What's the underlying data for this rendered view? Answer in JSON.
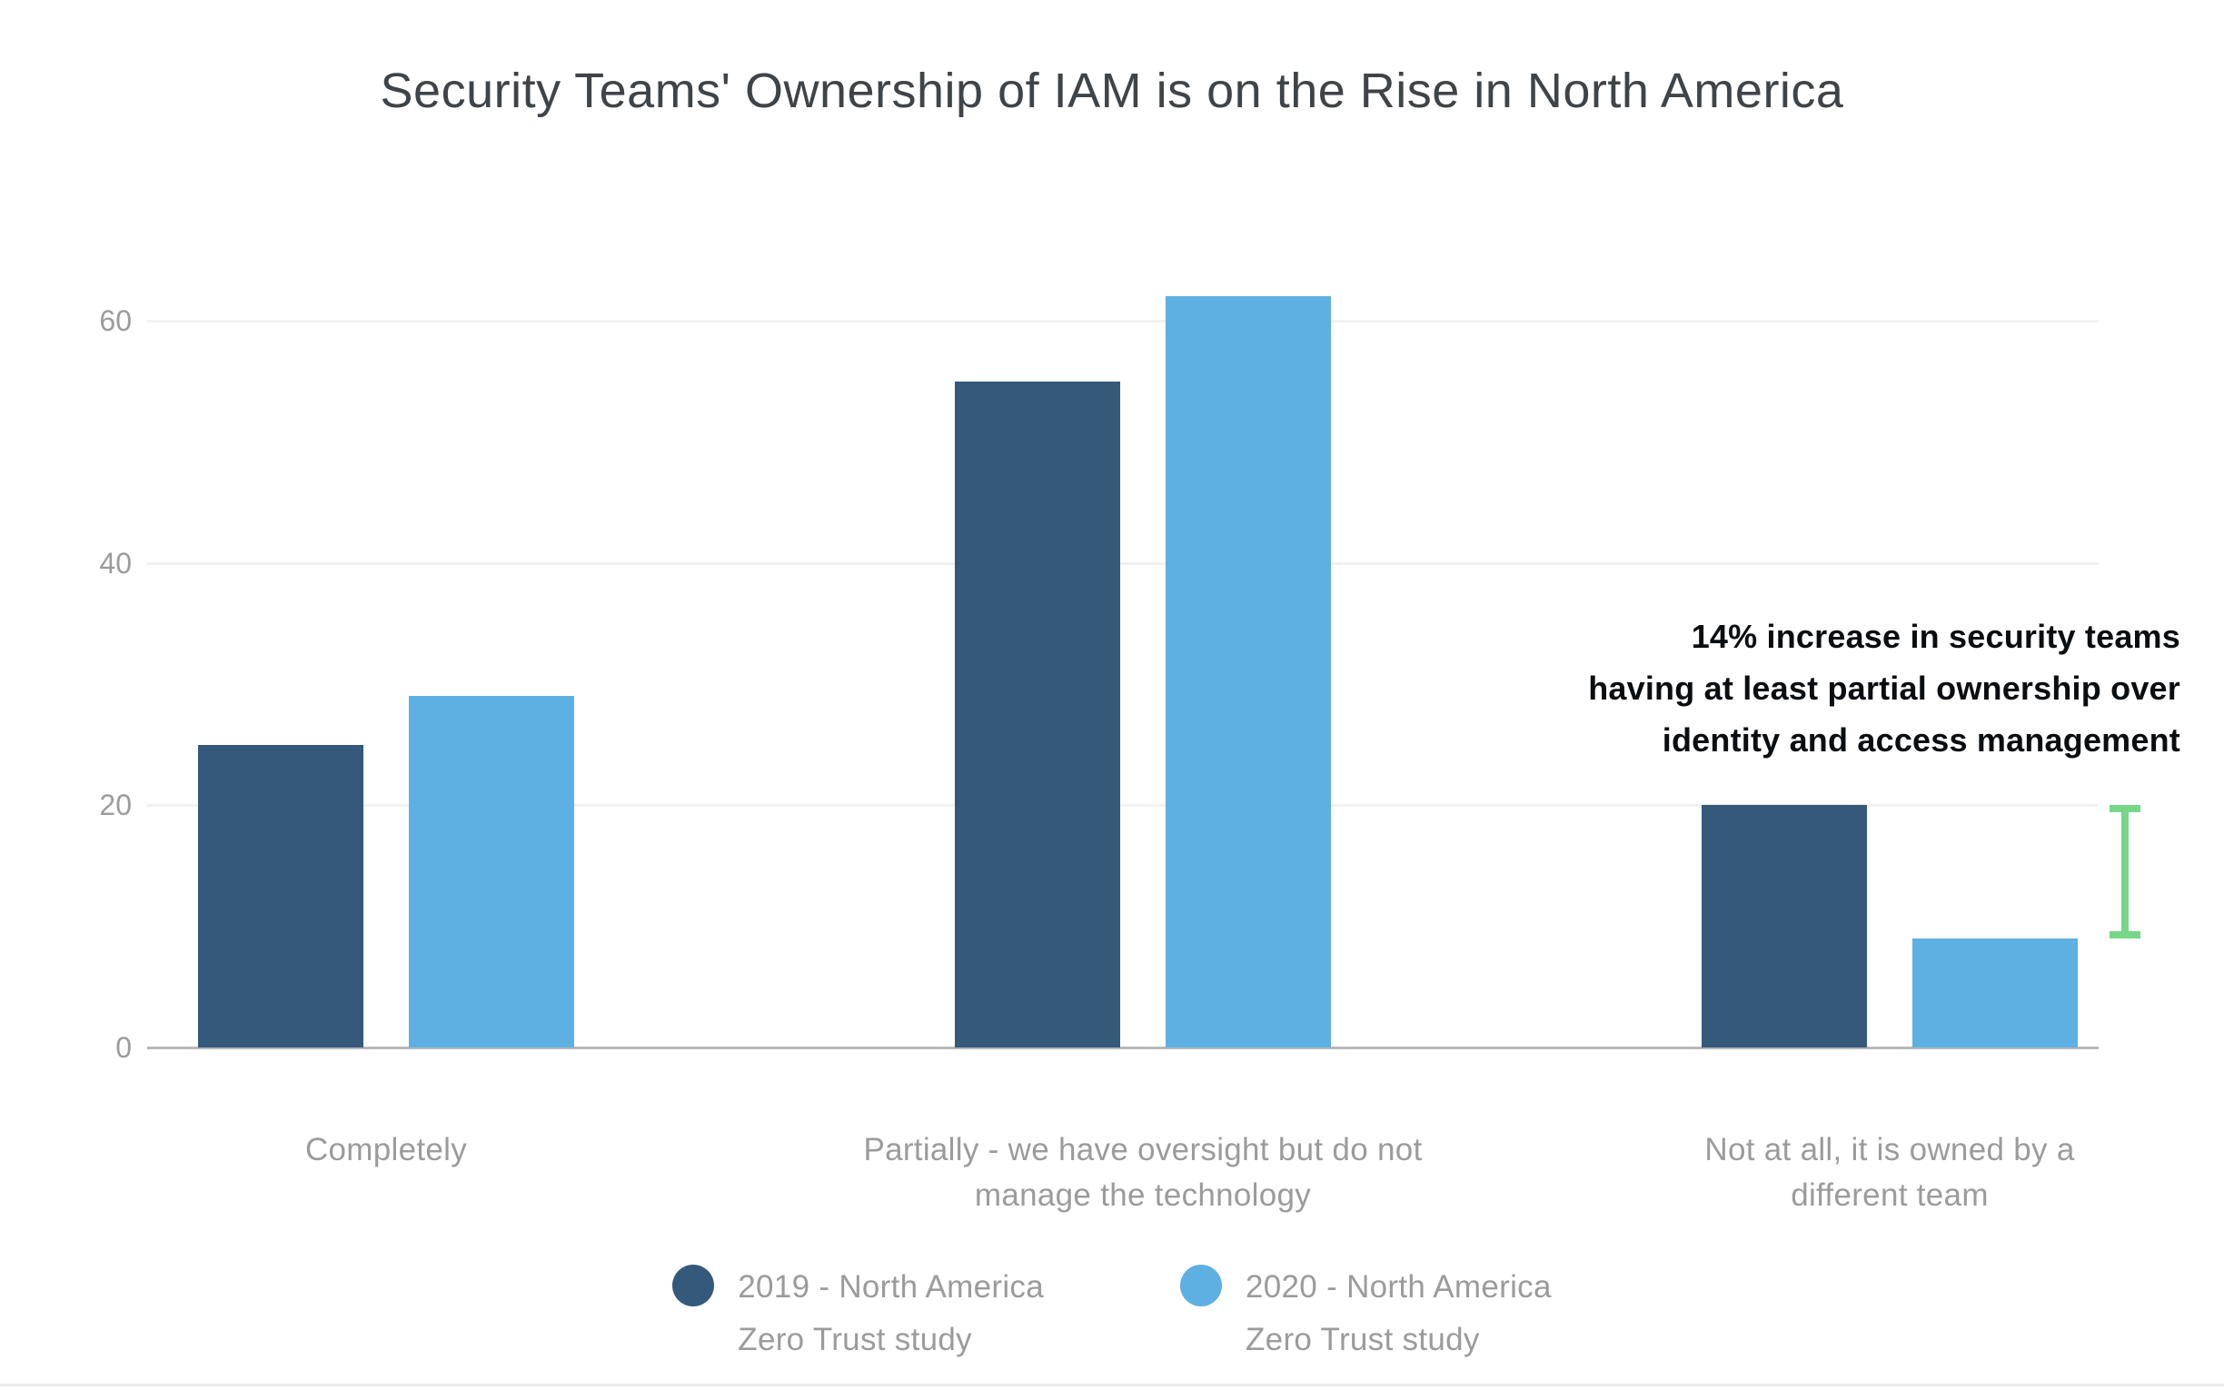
{
  "page": {
    "title": "Security Teams' Ownership of IAM is on the Rise in North America"
  },
  "chart_data": {
    "type": "bar",
    "title": "Security Teams' Ownership of IAM is on the Rise in North America",
    "categories": [
      "Completely",
      "Partially - we have oversight but do not manage the technology",
      "Not at all, it is owned by a different team"
    ],
    "categories_wrapped": [
      [
        "Completely"
      ],
      [
        "Partially - we have oversight but do not",
        "manage the technology"
      ],
      [
        "Not at all, it is owned by a",
        "different team"
      ]
    ],
    "series": [
      {
        "name": "2019 - North America Zero Trust study",
        "color": "#34597B",
        "values": [
          25,
          55,
          20
        ]
      },
      {
        "name": "2020 - North America Zero Trust study",
        "color": "#5EB0E2",
        "values": [
          29,
          62,
          9
        ]
      }
    ],
    "xlabel": "",
    "ylabel": "",
    "ylim": [
      0,
      65
    ],
    "yticks": [
      0,
      20,
      40,
      60
    ],
    "grid": true,
    "legend_position": "bottom",
    "annotation": {
      "lines": [
        "14% increase in security teams",
        "having at least partial ownership over",
        "identity and access management"
      ],
      "color": "#0B0E11"
    },
    "bracket": {
      "category": 2,
      "from": 9,
      "to": 20,
      "color": "#76D788"
    }
  },
  "legend": {
    "items": [
      {
        "line1": "2019 - North America",
        "line2": "Zero Trust study",
        "color": "#34597B"
      },
      {
        "line1": "2020 - North America",
        "line2": "Zero Trust study",
        "color": "#5EB0E2"
      }
    ]
  },
  "colors": {
    "title_text": "#3F4448",
    "axis_text": "#9B9B9B",
    "axis_line": "#B8B8B8",
    "gridline": "#F2F2F2",
    "series_2019": "#34597B",
    "series_2020": "#5EB0E2",
    "bracket_green": "#76D788",
    "annotation_text": "#0B0E11"
  }
}
